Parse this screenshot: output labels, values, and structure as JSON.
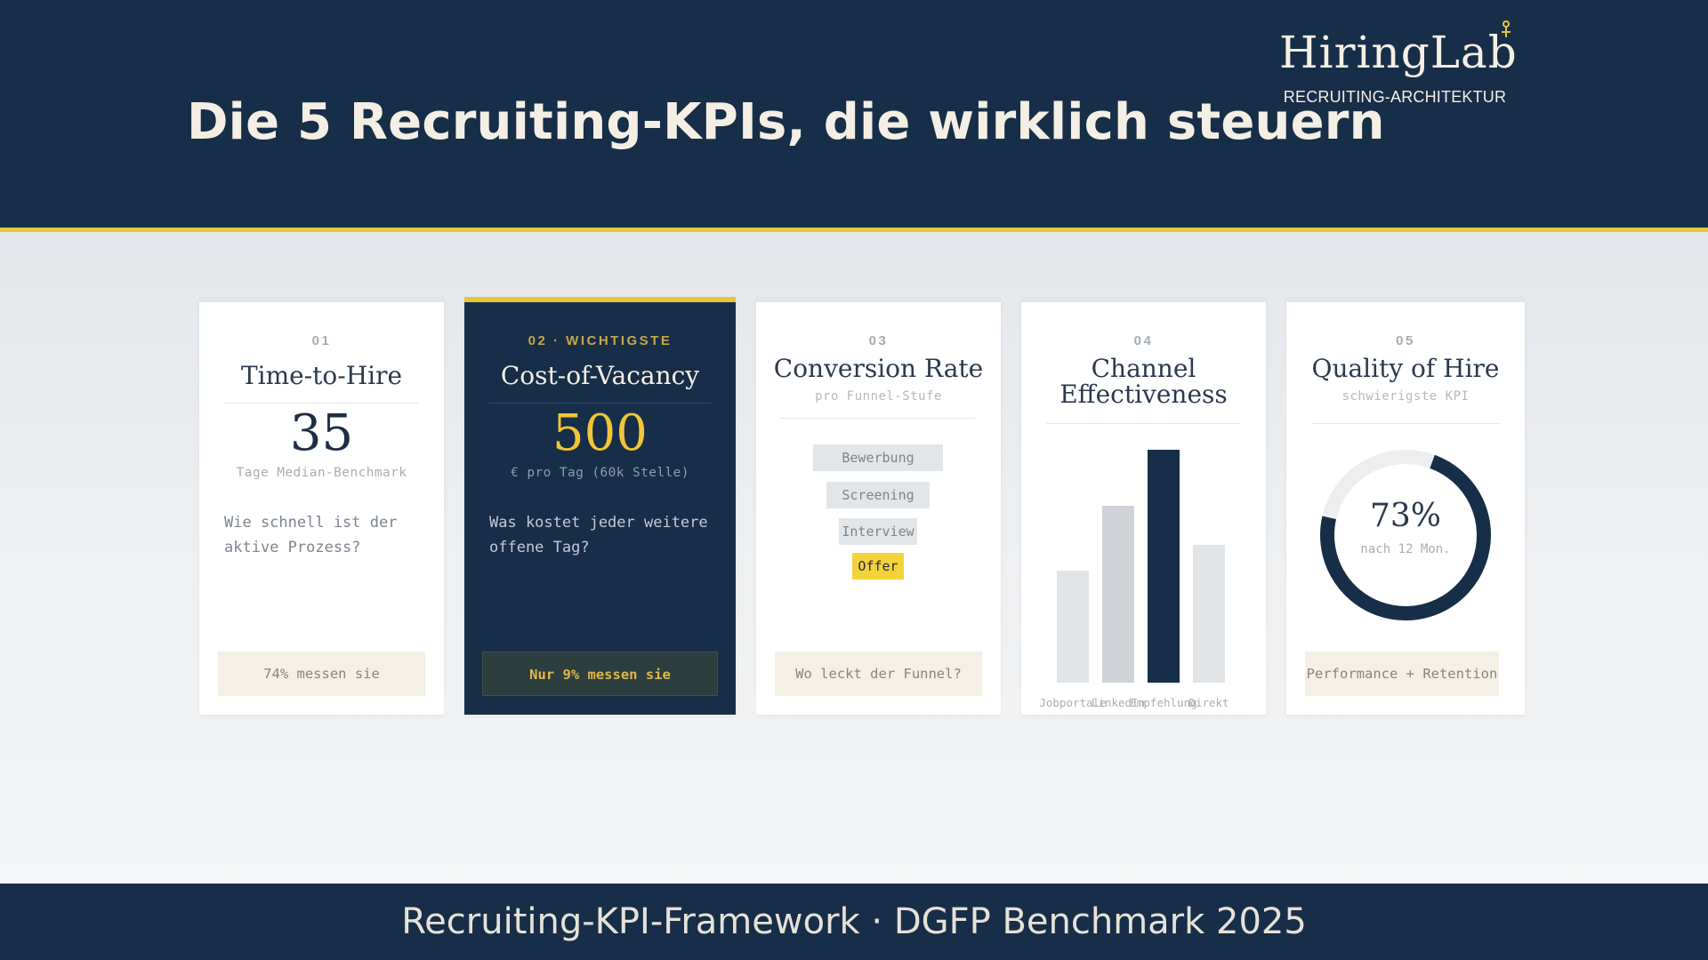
{
  "header": {
    "title": "Die 5 Recruiting-KPIs, die wirklich steuern",
    "logo_name": "HiringLab",
    "logo_tagline": "RECRUITING-ARCHITEKTUR",
    "accent_color": "#e7c63a",
    "brand_color": "#172e49"
  },
  "cards": [
    {
      "number": "01",
      "title": "Time-to-Hire",
      "value": "35",
      "unit": "Tage Median-Benchmark",
      "question": "Wie schnell ist der aktive Prozess?",
      "footer": "74% messen sie"
    },
    {
      "number": "02 · WICHTIGSTE",
      "title": "Cost-of-Vacancy",
      "value": "500",
      "unit": "€ pro Tag (60k Stelle)",
      "question": "Was kostet jeder weitere offene Tag?",
      "footer": "Nur 9% messen sie",
      "highlighted": true
    },
    {
      "number": "03",
      "title": "Conversion Rate",
      "subtitle": "pro Funnel-Stufe",
      "funnel_steps": [
        "Bewerbung",
        "Screening",
        "Interview",
        "Offer"
      ],
      "footer": "Wo leckt der Funnel?"
    },
    {
      "number": "04",
      "title_line1": "Channel",
      "title_line2": "Effectiveness",
      "chart": {
        "type": "bar",
        "categories": [
          "Jobportale",
          "LinkedIn",
          "Empfehlung",
          "Direkt"
        ],
        "values": [
          0.48,
          0.76,
          1.0,
          0.59
        ],
        "highlight_index": 2
      }
    },
    {
      "number": "05",
      "title": "Quality of Hire",
      "subtitle": "schwierigste KPI",
      "gauge_value": 0.73,
      "gauge_label": "73%",
      "gauge_sub": "nach 12 Mon.",
      "footer": "Performance + Retention"
    }
  ],
  "footer_text": "Recruiting-KPI-Framework · DGFP Benchmark 2025"
}
